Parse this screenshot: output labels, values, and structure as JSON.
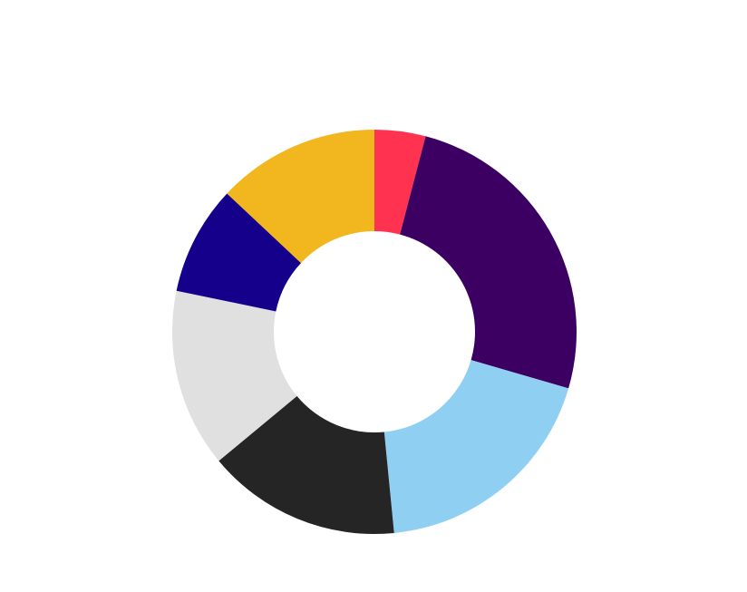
{
  "chart_data": {
    "type": "pie",
    "variant": "donut",
    "start_angle_deg": 0,
    "direction": "clockwise",
    "values": [
      4.2,
      26.2,
      19.5,
      16.0,
      14.7,
      9.0,
      13.4
    ],
    "colors": [
      "#ff334f",
      "#3b0061",
      "#8fd0f2",
      "#252525",
      "#e0e0e0",
      "#14008b",
      "#f2b61f"
    ],
    "legend": "none",
    "title": ""
  }
}
